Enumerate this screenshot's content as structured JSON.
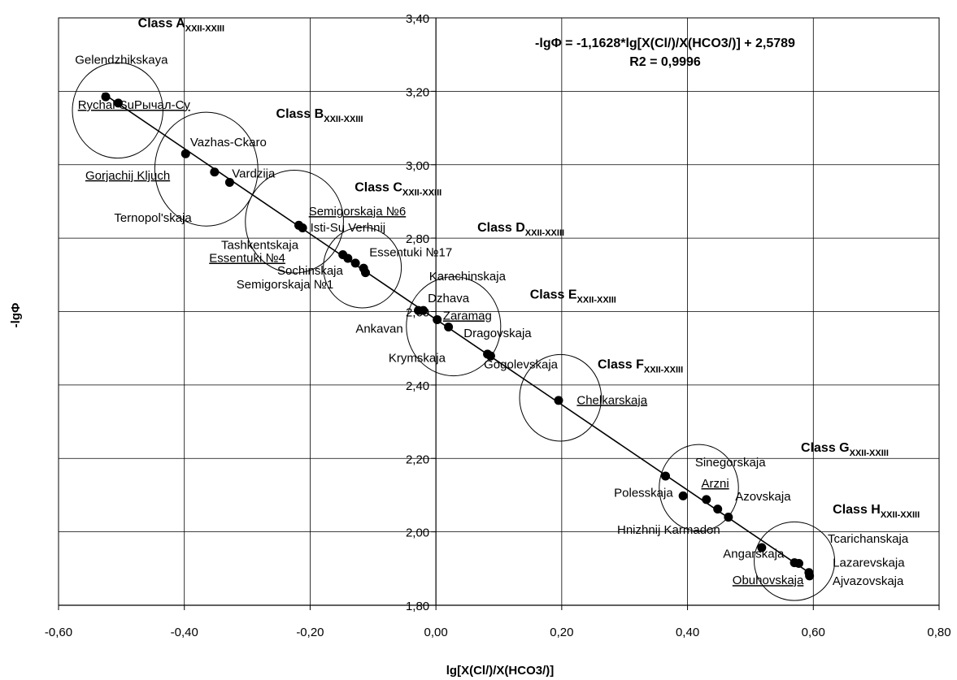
{
  "chart_data": {
    "type": "scatter",
    "xlabel": "lg[X(Cl/)/X(HCO3/)]",
    "ylabel": "-lgΦ",
    "xlim": [
      -0.6,
      0.8
    ],
    "ylim": [
      1.8,
      3.4
    ],
    "x_ticks": [
      "-0,60",
      "-0,40",
      "-0,20",
      "0,00",
      "0,20",
      "0,40",
      "0,60",
      "0,80"
    ],
    "x_tick_values": [
      -0.6,
      -0.4,
      -0.2,
      0.0,
      0.2,
      0.4,
      0.6,
      0.8
    ],
    "y_ticks": [
      "1,80",
      "2,00",
      "2,20",
      "2,40",
      "2,60",
      "2,80",
      "3,00",
      "3,20",
      "3,40"
    ],
    "y_tick_values": [
      1.8,
      2.0,
      2.2,
      2.4,
      2.6,
      2.8,
      3.0,
      3.2,
      3.4
    ],
    "grid": true,
    "equation_line1": "-lgΦ = -1,1628*lg[X(Cl/)/X(HCO3/)] + 2,5789",
    "equation_line2": "R2 = 0,9996",
    "trendline": {
      "slope": -1.1628,
      "intercept": 2.5789,
      "x_range": [
        -0.53,
        0.6
      ]
    },
    "points": [
      {
        "x": -0.525,
        "y": 3.185
      },
      {
        "x": -0.505,
        "y": 3.168
      },
      {
        "x": -0.398,
        "y": 3.03
      },
      {
        "x": -0.352,
        "y": 2.98
      },
      {
        "x": -0.328,
        "y": 2.952
      },
      {
        "x": -0.218,
        "y": 2.835
      },
      {
        "x": -0.212,
        "y": 2.828
      },
      {
        "x": -0.148,
        "y": 2.755
      },
      {
        "x": -0.14,
        "y": 2.745
      },
      {
        "x": -0.128,
        "y": 2.732
      },
      {
        "x": -0.115,
        "y": 2.718
      },
      {
        "x": -0.112,
        "y": 2.706
      },
      {
        "x": -0.028,
        "y": 2.603
      },
      {
        "x": -0.02,
        "y": 2.603
      },
      {
        "x": 0.002,
        "y": 2.578
      },
      {
        "x": 0.02,
        "y": 2.558
      },
      {
        "x": 0.082,
        "y": 2.484
      },
      {
        "x": 0.087,
        "y": 2.479
      },
      {
        "x": 0.195,
        "y": 2.358
      },
      {
        "x": 0.365,
        "y": 2.152
      },
      {
        "x": 0.393,
        "y": 2.098
      },
      {
        "x": 0.43,
        "y": 2.088
      },
      {
        "x": 0.448,
        "y": 2.062
      },
      {
        "x": 0.465,
        "y": 2.04
      },
      {
        "x": 0.518,
        "y": 1.957
      },
      {
        "x": 0.57,
        "y": 1.916
      },
      {
        "x": 0.577,
        "y": 1.914
      },
      {
        "x": 0.593,
        "y": 1.889
      },
      {
        "x": 0.594,
        "y": 1.88
      }
    ],
    "point_labels": [
      {
        "text": "Gelendzhikskaya",
        "x": -0.5,
        "y": 3.275,
        "underline": false
      },
      {
        "text": "Rychal-SuРычал-Су",
        "x": -0.48,
        "y": 3.152,
        "underline": true
      },
      {
        "text": "Vazhas-Ckaro",
        "x": -0.33,
        "y": 3.05,
        "underline": false
      },
      {
        "text": "Vardzija",
        "x": -0.29,
        "y": 2.965,
        "underline": false
      },
      {
        "text": "Gorjachij Kljuch",
        "x": -0.49,
        "y": 2.96,
        "underline": true
      },
      {
        "text": "Semigorskaja №6",
        "x": -0.125,
        "y": 2.862,
        "underline": true
      },
      {
        "text": "Ternopol'skaja",
        "x": -0.45,
        "y": 2.845,
        "underline": false
      },
      {
        "text": "Isti-Su Verhnij",
        "x": -0.14,
        "y": 2.818,
        "underline": false
      },
      {
        "text": "Tashkentskaja",
        "x": -0.28,
        "y": 2.77,
        "underline": false
      },
      {
        "text": "Essentuki №17",
        "x": -0.04,
        "y": 2.75,
        "underline": false
      },
      {
        "text": "Essentuki №4",
        "x": -0.3,
        "y": 2.735,
        "underline": true
      },
      {
        "text": "Sochinskaja",
        "x": -0.2,
        "y": 2.701,
        "underline": false
      },
      {
        "text": "Karachinskaja",
        "x": 0.05,
        "y": 2.685,
        "underline": false
      },
      {
        "text": "Semigorskaja №1",
        "x": -0.24,
        "y": 2.663,
        "underline": false
      },
      {
        "text": "Dzhava",
        "x": 0.02,
        "y": 2.625,
        "underline": false
      },
      {
        "text": "Zaramag",
        "x": 0.05,
        "y": 2.578,
        "underline": true
      },
      {
        "text": "Ankavan",
        "x": -0.09,
        "y": 2.543,
        "underline": false
      },
      {
        "text": "Dragovskaja",
        "x": 0.098,
        "y": 2.53,
        "underline": false
      },
      {
        "text": "Krymskaja",
        "x": -0.03,
        "y": 2.463,
        "underline": false
      },
      {
        "text": "Gogolevskaja",
        "x": 0.135,
        "y": 2.445,
        "underline": false
      },
      {
        "text": "Chelkarskaja",
        "x": 0.28,
        "y": 2.348,
        "underline": true
      },
      {
        "text": "Sinegorskaja",
        "x": 0.468,
        "y": 2.178,
        "underline": false
      },
      {
        "text": "Arzni",
        "x": 0.444,
        "y": 2.121,
        "underline": true
      },
      {
        "text": "Polesskaja",
        "x": 0.33,
        "y": 2.095,
        "underline": false
      },
      {
        "text": "Azovskaja",
        "x": 0.52,
        "y": 2.085,
        "underline": false
      },
      {
        "text": "Hnizhnij Karmadon",
        "x": 0.37,
        "y": 1.995,
        "underline": false
      },
      {
        "text": "Tcarichanskaja",
        "x": 0.687,
        "y": 1.97,
        "underline": false
      },
      {
        "text": "Angarskaja",
        "x": 0.505,
        "y": 1.929,
        "underline": false
      },
      {
        "text": "Lazarevskaja",
        "x": 0.688,
        "y": 1.905,
        "underline": false
      },
      {
        "text": "Ajvazovskaja",
        "x": 0.687,
        "y": 1.855,
        "underline": false
      },
      {
        "text": "Obuhovskaja",
        "x": 0.528,
        "y": 1.857,
        "underline": true
      }
    ],
    "class_labels": [
      {
        "main": "Class A",
        "sub": "XXII-XXIII",
        "x": -0.405,
        "y": 3.375
      },
      {
        "main": "Class B",
        "sub": "XXII-XXIII",
        "x": -0.185,
        "y": 3.128
      },
      {
        "main": "Class C",
        "sub": "XXII-XXIII",
        "x": -0.06,
        "y": 2.928
      },
      {
        "main": "Class D",
        "sub": "XXII-XXIII",
        "x": 0.135,
        "y": 2.818
      },
      {
        "main": "Class E",
        "sub": "XXII-XXIII",
        "x": 0.218,
        "y": 2.635
      },
      {
        "main": "Class F",
        "sub": "XXII-XXIII",
        "x": 0.325,
        "y": 2.445
      },
      {
        "main": "Class G",
        "sub": "XXII-XXIII",
        "x": 0.65,
        "y": 2.218
      },
      {
        "main": "Class H",
        "sub": "XXII-XXIII",
        "x": 0.7,
        "y": 2.05
      }
    ],
    "class_ellipses": [
      {
        "cx": -0.506,
        "cy": 3.148,
        "rx": 0.072,
        "ry": 0.13
      },
      {
        "cx": -0.365,
        "cy": 2.988,
        "rx": 0.082,
        "ry": 0.155
      },
      {
        "cx": -0.225,
        "cy": 2.845,
        "rx": 0.078,
        "ry": 0.14
      },
      {
        "cx": -0.117,
        "cy": 2.72,
        "rx": 0.062,
        "ry": 0.11
      },
      {
        "cx": 0.028,
        "cy": 2.56,
        "rx": 0.075,
        "ry": 0.135
      },
      {
        "cx": 0.198,
        "cy": 2.365,
        "rx": 0.065,
        "ry": 0.118
      },
      {
        "cx": 0.418,
        "cy": 2.12,
        "rx": 0.063,
        "ry": 0.118
      },
      {
        "cx": 0.57,
        "cy": 1.92,
        "rx": 0.064,
        "ry": 0.107
      }
    ]
  }
}
